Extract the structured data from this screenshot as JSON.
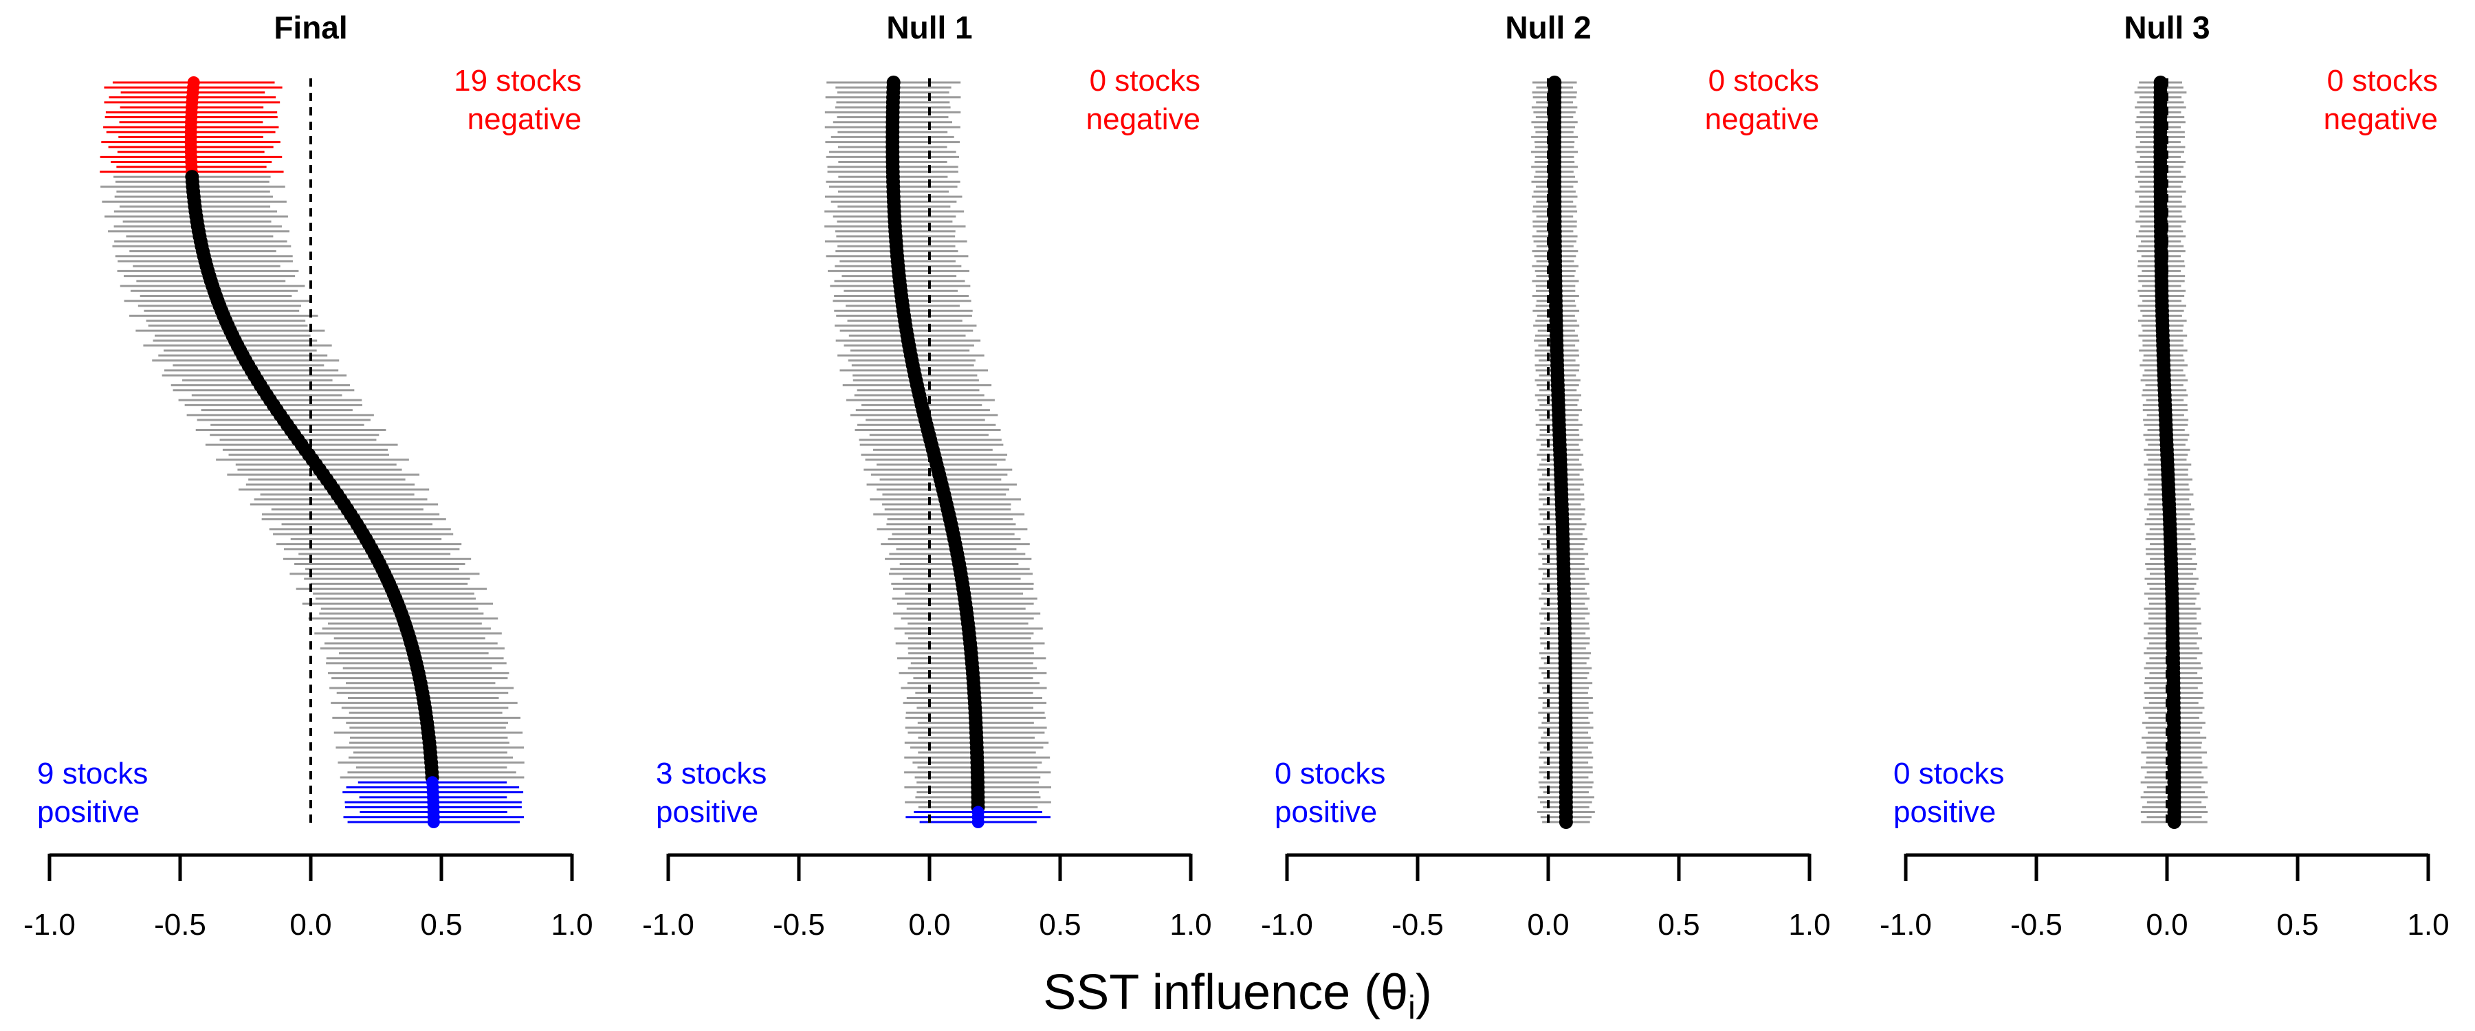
{
  "figure": {
    "xlabel_main": "SST influence (θ",
    "xlabel_sub": "i",
    "xlabel_close": ")"
  },
  "colors": {
    "negative": "#ff0000",
    "positive": "#0000ff",
    "neutral": "#9a9a9a",
    "point": "#000000",
    "zero_line": "#000000"
  },
  "chart_data": [
    {
      "type": "interval",
      "title": "Final",
      "xlim": [
        -1.0,
        1.0
      ],
      "xticks": [
        -1.0,
        -0.5,
        0.0,
        0.5,
        1.0
      ],
      "xtick_labels": [
        "-1.0",
        "-0.5",
        "0.0",
        "0.5",
        "1.0"
      ],
      "n_stocks": 150,
      "median_start": -0.54,
      "median_end": 0.51,
      "half_width_top": 0.31,
      "half_width_mid": 0.33,
      "half_width_bottom": 0.32,
      "negative_count": 19,
      "positive_count": 9,
      "neg_label_1": "19 stocks",
      "neg_label_2": "negative",
      "pos_label_1": "9 stocks",
      "pos_label_2": "positive"
    },
    {
      "type": "interval",
      "title": "Null 1",
      "xlim": [
        -1.0,
        1.0
      ],
      "xticks": [
        -1.0,
        -0.5,
        0.0,
        0.5,
        1.0
      ],
      "xtick_labels": [
        "-1.0",
        "-0.5",
        "0.0",
        "0.5",
        "1.0"
      ],
      "n_stocks": 150,
      "median_start": -0.17,
      "median_end": 0.2,
      "half_width_top": 0.23,
      "half_width_mid": 0.26,
      "half_width_bottom": 0.25,
      "negative_count": 0,
      "positive_count": 3,
      "neg_label_1": "0 stocks",
      "neg_label_2": "negative",
      "pos_label_1": "3 stocks",
      "pos_label_2": "positive"
    },
    {
      "type": "interval",
      "title": "Null 2",
      "xlim": [
        -1.0,
        1.0
      ],
      "xticks": [
        -1.0,
        -0.5,
        0.0,
        0.5,
        1.0
      ],
      "xtick_labels": [
        "-1.0",
        "-0.5",
        "0.0",
        "0.5",
        "1.0"
      ],
      "n_stocks": 150,
      "median_start": 0.02,
      "median_end": 0.07,
      "half_width_top": 0.08,
      "half_width_mid": 0.08,
      "half_width_bottom": 0.1,
      "negative_count": 0,
      "positive_count": 0,
      "neg_label_1": "0 stocks",
      "neg_label_2": "negative",
      "pos_label_1": "0 stocks",
      "pos_label_2": "positive"
    },
    {
      "type": "interval",
      "title": "Null 3",
      "xlim": [
        -1.0,
        1.0
      ],
      "xticks": [
        -1.0,
        -0.5,
        0.0,
        0.5,
        1.0
      ],
      "xtick_labels": [
        "-1.0",
        "-0.5",
        "0.0",
        "0.5",
        "1.0"
      ],
      "n_stocks": 150,
      "median_start": -0.03,
      "median_end": 0.03,
      "half_width_top": 0.09,
      "half_width_mid": 0.08,
      "half_width_bottom": 0.12,
      "negative_count": 0,
      "positive_count": 0,
      "neg_label_1": "0 stocks",
      "neg_label_2": "negative",
      "pos_label_1": "0 stocks",
      "pos_label_2": "positive"
    }
  ]
}
